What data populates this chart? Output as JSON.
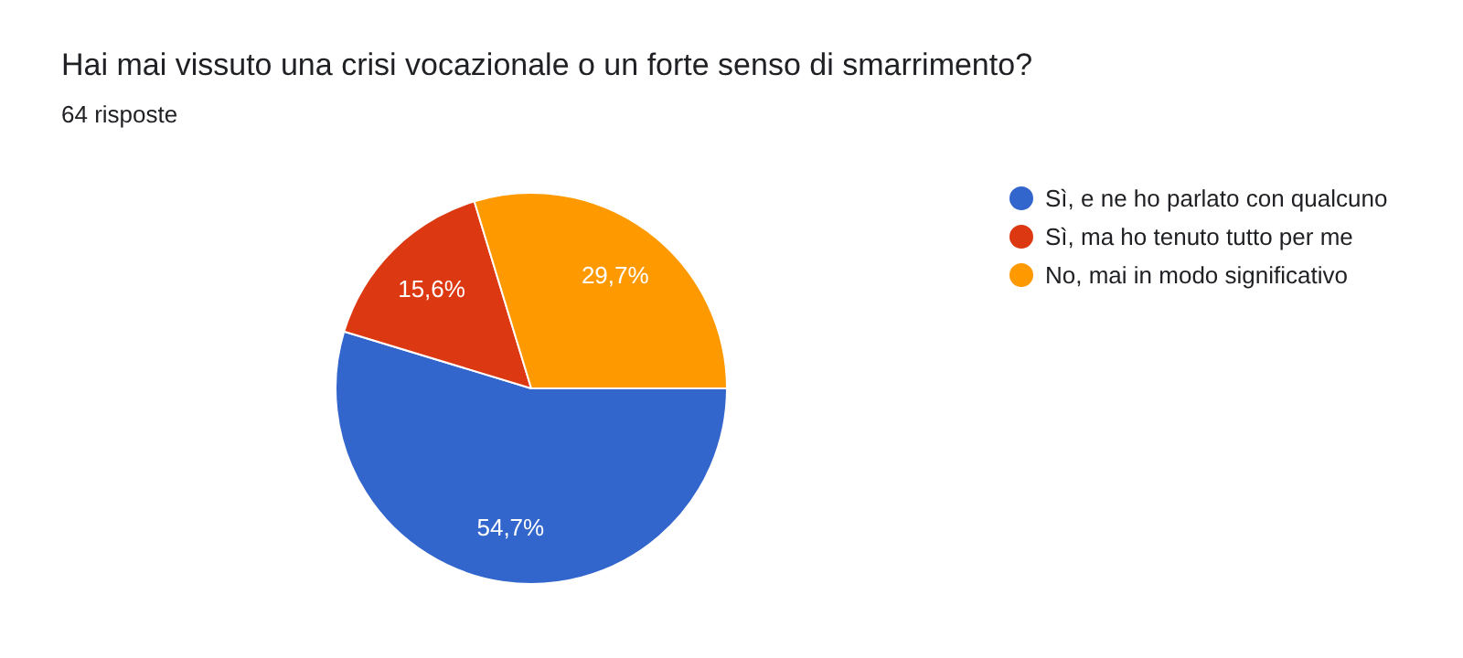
{
  "chart_data": {
    "type": "pie",
    "title": "Hai mai vissuto una crisi vocazionale o un forte senso di smarrimento?",
    "subtitle": "64 risposte",
    "categories": [
      "Sì, e ne ho parlato con qualcuno",
      "Sì, ma ho tenuto tutto per me",
      "No, mai in modo significativo"
    ],
    "values": [
      54.7,
      15.6,
      29.7
    ],
    "colors": [
      "#3366cc",
      "#dc3912",
      "#ff9900"
    ],
    "value_labels": [
      "54,7%",
      "15,6%",
      "29,7%"
    ],
    "legend": "right"
  }
}
